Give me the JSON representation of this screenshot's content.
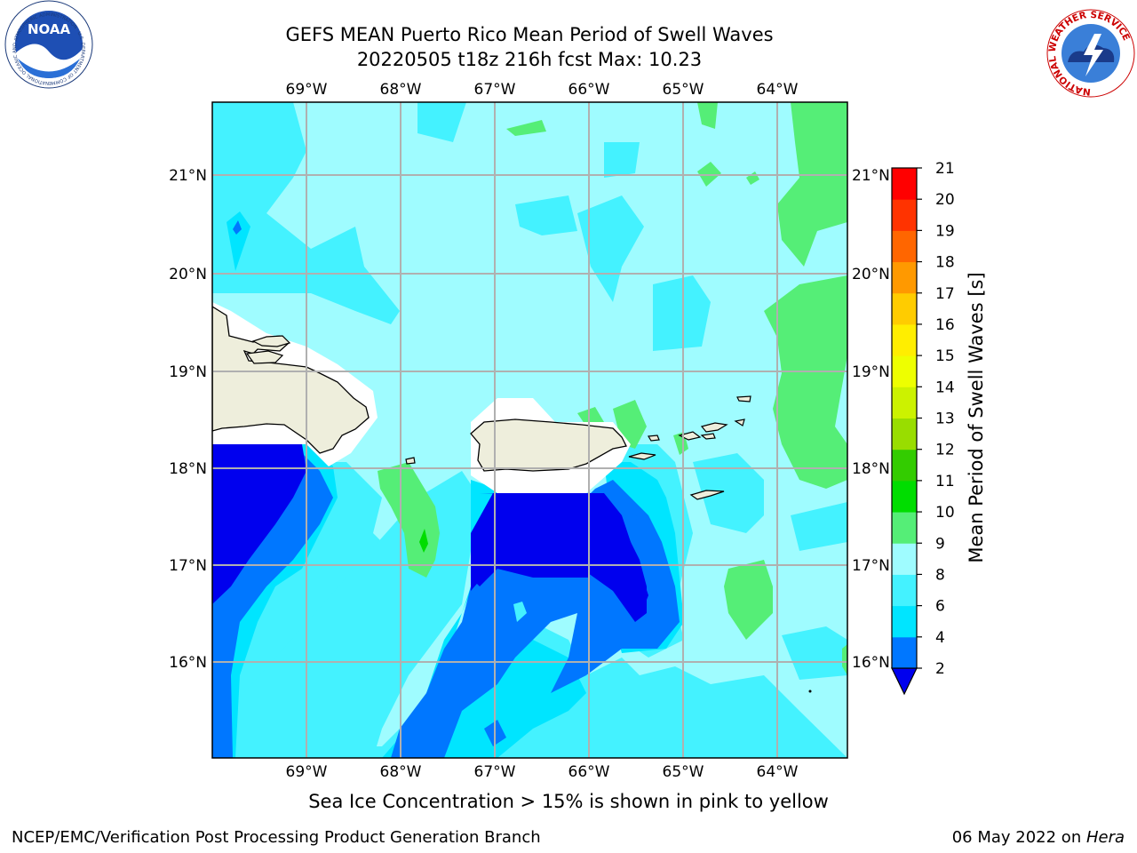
{
  "title": {
    "line1": "GEFS MEAN Puerto Rico Mean Period of Swell Waves",
    "line2": "20220505 t18z 216h fcst   Max: 10.23"
  },
  "caption": "Sea Ice Concentration > 15% is shown in pink to yellow",
  "footer": {
    "left": "NCEP/EMC/Verification Post Processing Product Generation Branch",
    "date": "06 May 2022 on ",
    "host": "Hera"
  },
  "logos": {
    "noaa_text": "NOAA",
    "noaa_ring": "NATIONAL OCEANIC AND ATMOSPHERIC ADMINISTRATION · U.S. DEPARTMENT OF COMMERCE",
    "nws_ring": "NATIONAL WEATHER SERVICE"
  },
  "map": {
    "lon_labels": [
      "69°W",
      "68°W",
      "67°W",
      "66°W",
      "65°W",
      "64°W"
    ],
    "lat_labels": [
      "21°N",
      "20°N",
      "19°N",
      "18°N",
      "17°N",
      "16°N"
    ],
    "lon_range": [
      -70.0,
      -63.25
    ],
    "lat_range": [
      15.0,
      21.75
    ],
    "land_color": "#eeeedc",
    "coast_color": "#000000",
    "grid_color": "#b0b0b0"
  },
  "colorbar": {
    "label": "Mean Period of Swell Waves [s]",
    "ticks": [
      "2",
      "4",
      "6",
      "8",
      "9",
      "10",
      "11",
      "12",
      "13",
      "14",
      "15",
      "16",
      "17",
      "18",
      "19",
      "20",
      "21"
    ],
    "colors": [
      "#0000ee",
      "#0077ff",
      "#00e5ff",
      "#44f2ff",
      "#9ffcff",
      "#55ee77",
      "#00dd00",
      "#33cc00",
      "#99dd00",
      "#ccf200",
      "#eeff00",
      "#ffee00",
      "#ffcc00",
      "#ff9900",
      "#ff6600",
      "#ff3300",
      "#ff0000"
    ],
    "under_color": "#0000ee"
  },
  "chart_data": {
    "type": "heatmap",
    "title": "GEFS MEAN Puerto Rico Mean Period of Swell Waves",
    "subtitle": "20220505 t18z 216h fcst   Max: 10.23",
    "variable": "Mean Period of Swell Waves [s]",
    "max_value": 10.23,
    "xlim": [
      -70.0,
      -63.25
    ],
    "ylim": [
      15.0,
      21.75
    ]
  }
}
